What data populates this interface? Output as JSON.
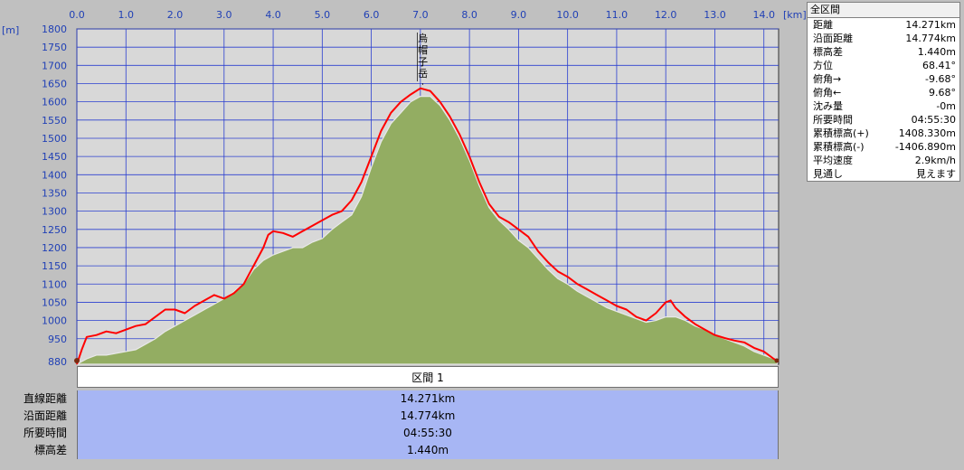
{
  "chart_data": {
    "type": "area",
    "x_unit": "[km]",
    "y_unit": "[m]",
    "xlim": [
      0,
      14.3
    ],
    "ylim": [
      880,
      1800
    ],
    "x_ticks": [
      "0.0",
      "1.0",
      "2.0",
      "3.0",
      "4.0",
      "5.0",
      "6.0",
      "7.0",
      "8.0",
      "9.0",
      "10.0",
      "11.0",
      "12.0",
      "13.0",
      "14.0"
    ],
    "y_ticks": [
      "880",
      "950",
      "1000",
      "1050",
      "1100",
      "1150",
      "1200",
      "1250",
      "1300",
      "1350",
      "1400",
      "1450",
      "1500",
      "1550",
      "1600",
      "1650",
      "1700",
      "1750",
      "1800"
    ],
    "grid": true,
    "peak_annotation": {
      "text": "烏帽子岳",
      "x": 7.05
    },
    "series": [
      {
        "name": "",
        "color": "#ff0000",
        "points": [
          [
            0,
            880
          ],
          [
            0.1,
            920
          ],
          [
            0.2,
            955
          ],
          [
            0.4,
            960
          ],
          [
            0.6,
            970
          ],
          [
            0.8,
            965
          ],
          [
            1.0,
            975
          ],
          [
            1.2,
            985
          ],
          [
            1.4,
            990
          ],
          [
            1.6,
            1010
          ],
          [
            1.8,
            1030
          ],
          [
            2.0,
            1030
          ],
          [
            2.2,
            1020
          ],
          [
            2.4,
            1040
          ],
          [
            2.6,
            1055
          ],
          [
            2.8,
            1070
          ],
          [
            3.0,
            1060
          ],
          [
            3.2,
            1075
          ],
          [
            3.4,
            1100
          ],
          [
            3.6,
            1150
          ],
          [
            3.8,
            1200
          ],
          [
            3.9,
            1235
          ],
          [
            4.0,
            1245
          ],
          [
            4.2,
            1240
          ],
          [
            4.4,
            1230
          ],
          [
            4.6,
            1245
          ],
          [
            4.8,
            1260
          ],
          [
            5.0,
            1275
          ],
          [
            5.2,
            1290
          ],
          [
            5.4,
            1300
          ],
          [
            5.6,
            1330
          ],
          [
            5.8,
            1380
          ],
          [
            6.0,
            1450
          ],
          [
            6.2,
            1520
          ],
          [
            6.4,
            1570
          ],
          [
            6.6,
            1600
          ],
          [
            6.8,
            1620
          ],
          [
            7.0,
            1637
          ],
          [
            7.2,
            1630
          ],
          [
            7.4,
            1600
          ],
          [
            7.6,
            1560
          ],
          [
            7.8,
            1510
          ],
          [
            8.0,
            1450
          ],
          [
            8.2,
            1380
          ],
          [
            8.4,
            1320
          ],
          [
            8.6,
            1285
          ],
          [
            8.8,
            1270
          ],
          [
            9.0,
            1250
          ],
          [
            9.2,
            1230
          ],
          [
            9.4,
            1190
          ],
          [
            9.6,
            1160
          ],
          [
            9.8,
            1135
          ],
          [
            10.0,
            1120
          ],
          [
            10.2,
            1100
          ],
          [
            10.4,
            1085
          ],
          [
            10.6,
            1070
          ],
          [
            10.8,
            1055
          ],
          [
            11.0,
            1040
          ],
          [
            11.2,
            1030
          ],
          [
            11.4,
            1010
          ],
          [
            11.6,
            1000
          ],
          [
            11.8,
            1020
          ],
          [
            12.0,
            1050
          ],
          [
            12.1,
            1055
          ],
          [
            12.2,
            1035
          ],
          [
            12.4,
            1010
          ],
          [
            12.6,
            990
          ],
          [
            12.8,
            975
          ],
          [
            13.0,
            960
          ],
          [
            13.2,
            952
          ],
          [
            13.4,
            945
          ],
          [
            13.6,
            940
          ],
          [
            13.8,
            925
          ],
          [
            14.0,
            915
          ],
          [
            14.2,
            895
          ],
          [
            14.27,
            890
          ]
        ]
      },
      {
        "name": "",
        "color": "#93ad62",
        "points": [
          [
            0,
            880
          ],
          [
            0.2,
            895
          ],
          [
            0.4,
            905
          ],
          [
            0.6,
            905
          ],
          [
            0.8,
            910
          ],
          [
            1.0,
            915
          ],
          [
            1.2,
            920
          ],
          [
            1.4,
            935
          ],
          [
            1.6,
            950
          ],
          [
            1.8,
            970
          ],
          [
            2.0,
            985
          ],
          [
            2.2,
            1000
          ],
          [
            2.4,
            1015
          ],
          [
            2.6,
            1030
          ],
          [
            2.8,
            1045
          ],
          [
            3.0,
            1060
          ],
          [
            3.2,
            1080
          ],
          [
            3.4,
            1100
          ],
          [
            3.6,
            1140
          ],
          [
            3.8,
            1165
          ],
          [
            4.0,
            1180
          ],
          [
            4.2,
            1190
          ],
          [
            4.4,
            1200
          ],
          [
            4.6,
            1200
          ],
          [
            4.8,
            1215
          ],
          [
            5.0,
            1225
          ],
          [
            5.2,
            1250
          ],
          [
            5.4,
            1270
          ],
          [
            5.6,
            1290
          ],
          [
            5.8,
            1340
          ],
          [
            6.0,
            1420
          ],
          [
            6.2,
            1490
          ],
          [
            6.4,
            1540
          ],
          [
            6.6,
            1570
          ],
          [
            6.8,
            1600
          ],
          [
            7.0,
            1615
          ],
          [
            7.2,
            1615
          ],
          [
            7.4,
            1590
          ],
          [
            7.6,
            1550
          ],
          [
            7.8,
            1500
          ],
          [
            8.0,
            1440
          ],
          [
            8.2,
            1370
          ],
          [
            8.4,
            1310
          ],
          [
            8.6,
            1275
          ],
          [
            8.8,
            1250
          ],
          [
            9.0,
            1220
          ],
          [
            9.2,
            1200
          ],
          [
            9.4,
            1170
          ],
          [
            9.6,
            1140
          ],
          [
            9.8,
            1115
          ],
          [
            10.0,
            1100
          ],
          [
            10.2,
            1080
          ],
          [
            10.4,
            1065
          ],
          [
            10.6,
            1050
          ],
          [
            10.8,
            1035
          ],
          [
            11.0,
            1025
          ],
          [
            11.2,
            1015
          ],
          [
            11.4,
            1005
          ],
          [
            11.6,
            995
          ],
          [
            11.8,
            1000
          ],
          [
            12.0,
            1010
          ],
          [
            12.2,
            1010
          ],
          [
            12.4,
            1000
          ],
          [
            12.6,
            985
          ],
          [
            12.8,
            975
          ],
          [
            13.0,
            960
          ],
          [
            13.2,
            950
          ],
          [
            13.4,
            940
          ],
          [
            13.6,
            930
          ],
          [
            13.8,
            915
          ],
          [
            14.0,
            905
          ],
          [
            14.2,
            895
          ],
          [
            14.27,
            890
          ]
        ]
      }
    ]
  },
  "stats_panel": {
    "title": "全区間",
    "rows": [
      {
        "label": "距離",
        "value": "14.271km"
      },
      {
        "label": "沿面距離",
        "value": "14.774km"
      },
      {
        "label": "標高差",
        "value": "1.440m"
      },
      {
        "label": "方位",
        "value": "68.41°"
      },
      {
        "label": "俯角→",
        "value": "-9.68°"
      },
      {
        "label": "俯角←",
        "value": "9.68°"
      },
      {
        "label": "沈み量",
        "value": "-0m"
      },
      {
        "label": "所要時間",
        "value": "04:55:30"
      },
      {
        "label": "累積標高(+)",
        "value": "1408.330m"
      },
      {
        "label": "累積標高(-)",
        "value": "-1406.890m"
      },
      {
        "label": "平均速度",
        "value": "2.9km/h"
      },
      {
        "label": "見通し",
        "value": "見えます"
      }
    ]
  },
  "section_table": {
    "header": "区間 1",
    "rows": [
      {
        "label": "直線距離",
        "value": "14.271km"
      },
      {
        "label": "沿面距離",
        "value": "14.774km"
      },
      {
        "label": "所要時間",
        "value": "04:55:30"
      },
      {
        "label": "標高差",
        "value": "1.440m"
      }
    ]
  }
}
